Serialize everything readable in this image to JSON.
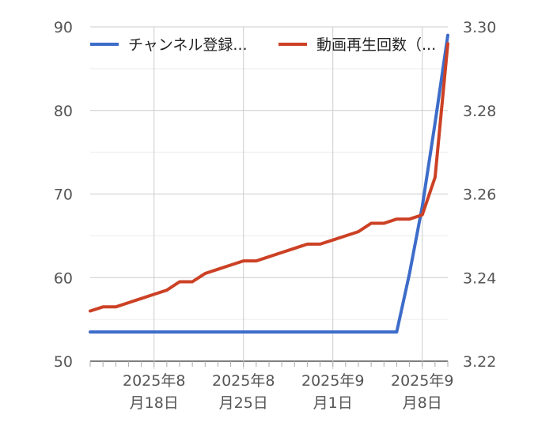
{
  "chart_data": {
    "type": "line",
    "title": "",
    "xlabel": "",
    "ylabel": "",
    "legend_position": "top",
    "grid": true,
    "y_left": {
      "min": 50,
      "max": 90,
      "ticks": [
        "90",
        "80",
        "70",
        "60",
        "50"
      ]
    },
    "y_right": {
      "min": 3.22,
      "max": 3.3,
      "ticks": [
        "3.30",
        "3.28",
        "3.26",
        "3.24",
        "3.22"
      ]
    },
    "x_ticks": [
      {
        "line1": "2025年8",
        "line2": "月18日",
        "date": "2025-08-18"
      },
      {
        "line1": "2025年8",
        "line2": "月25日",
        "date": "2025-08-25"
      },
      {
        "line1": "2025年9",
        "line2": "月1日",
        "date": "2025-09-01"
      },
      {
        "line1": "2025年9",
        "line2": "月8日",
        "date": "2025-09-08"
      }
    ],
    "x_range": [
      "2025-08-13",
      "2025-09-10"
    ],
    "series": [
      {
        "name": "チャンネル登録...",
        "color": "#3d6cc9",
        "axis": "left",
        "points": [
          [
            "2025-08-13",
            53.5
          ],
          [
            "2025-08-20",
            53.5
          ],
          [
            "2025-08-27",
            53.5
          ],
          [
            "2025-09-03",
            53.5
          ],
          [
            "2025-09-06",
            53.5
          ],
          [
            "2025-09-07",
            60.5
          ],
          [
            "2025-09-08",
            68.5
          ],
          [
            "2025-09-09",
            78.5
          ],
          [
            "2025-09-10",
            89
          ]
        ]
      },
      {
        "name": "動画再生回数（...",
        "color": "#cc4125",
        "axis": "right",
        "points": [
          [
            "2025-08-13",
            3.232
          ],
          [
            "2025-08-14",
            3.233
          ],
          [
            "2025-08-15",
            3.233
          ],
          [
            "2025-08-16",
            3.234
          ],
          [
            "2025-08-17",
            3.235
          ],
          [
            "2025-08-18",
            3.236
          ],
          [
            "2025-08-19",
            3.237
          ],
          [
            "2025-08-20",
            3.239
          ],
          [
            "2025-08-21",
            3.239
          ],
          [
            "2025-08-22",
            3.241
          ],
          [
            "2025-08-23",
            3.242
          ],
          [
            "2025-08-24",
            3.243
          ],
          [
            "2025-08-25",
            3.244
          ],
          [
            "2025-08-26",
            3.244
          ],
          [
            "2025-08-27",
            3.245
          ],
          [
            "2025-08-28",
            3.246
          ],
          [
            "2025-08-29",
            3.247
          ],
          [
            "2025-08-30",
            3.248
          ],
          [
            "2025-08-31",
            3.248
          ],
          [
            "2025-09-01",
            3.249
          ],
          [
            "2025-09-02",
            3.25
          ],
          [
            "2025-09-03",
            3.251
          ],
          [
            "2025-09-04",
            3.253
          ],
          [
            "2025-09-05",
            3.253
          ],
          [
            "2025-09-06",
            3.254
          ],
          [
            "2025-09-07",
            3.254
          ],
          [
            "2025-09-08",
            3.255
          ],
          [
            "2025-09-09",
            3.264
          ],
          [
            "2025-09-10",
            3.296
          ]
        ]
      }
    ]
  }
}
